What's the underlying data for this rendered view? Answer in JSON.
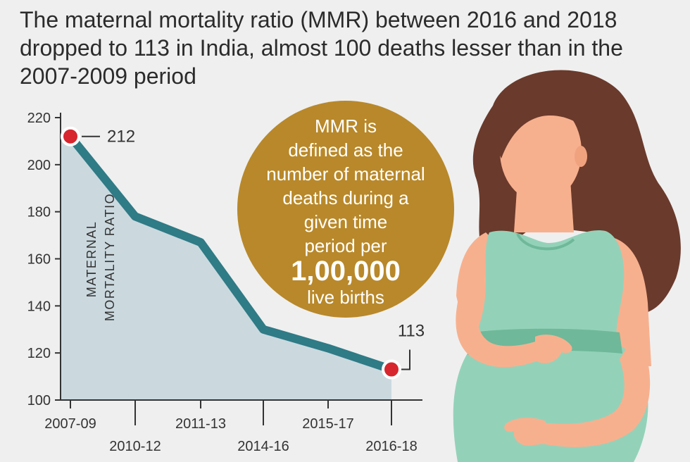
{
  "headline": {
    "line1": "The maternal mortality ratio (MMR) between 2016 and 2018",
    "line2": "dropped to 113 in India, almost 100 deaths lesser than in the",
    "line3": "2007-2009 period"
  },
  "definition": {
    "line1": "MMR is",
    "line2": "defined as the",
    "line3": "number of maternal",
    "line4": "deaths during a",
    "line5": "given time",
    "line6": "period per",
    "highlight": "1,00,000",
    "line7": "live births"
  },
  "colors": {
    "line": "#2f7b86",
    "area": "#cbd9df",
    "marker": "#d7262e",
    "circle": "#b8882a",
    "dress": "#93d2b9",
    "dress_dark": "#6fb89a",
    "skin": "#f7b08e",
    "hair": "#6a3a2c"
  },
  "chart_data": {
    "type": "line",
    "title": "",
    "xlabel": "",
    "ylabel": "MATERNAL MORTALITY RATIO",
    "ylim": [
      100,
      220
    ],
    "yticks": [
      100,
      120,
      140,
      160,
      180,
      200,
      220
    ],
    "categories": [
      "2007-09",
      "2010-12",
      "2011-13",
      "2014-16",
      "2015-17",
      "2016-18"
    ],
    "values": [
      212,
      178,
      167,
      130,
      122,
      113
    ],
    "grid": false,
    "annotations": [
      {
        "category": "2007-09",
        "label": "212"
      },
      {
        "category": "2016-18",
        "label": "113"
      }
    ]
  }
}
